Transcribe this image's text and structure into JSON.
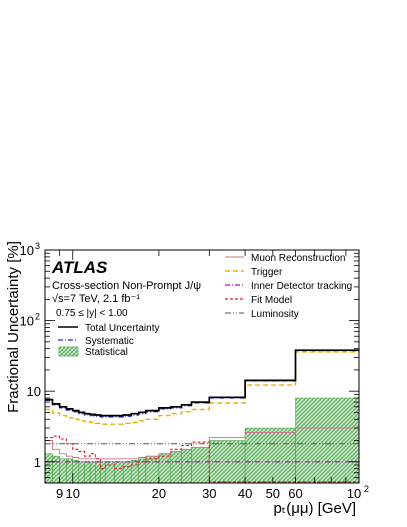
{
  "chart_data": {
    "type": "line",
    "experiment": "ATLAS",
    "annotation_lines": [
      "Cross-section Non-Prompt J/ψ",
      "√s=7 TeV, 2.1 fb⁻¹",
      "0.75 ≤ |y| < 1.00"
    ],
    "xlabel": "pₜ(μμ) [GeV]",
    "ylabel": "Fractional Uncertainty [%]",
    "xscale": "log",
    "yscale": "log",
    "xlim": [
      8,
      100
    ],
    "ylim": [
      0.5,
      1000
    ],
    "x_tick_labels": [
      {
        "x": 9,
        "label": "9"
      },
      {
        "x": 10,
        "label": "10"
      },
      {
        "x": 20,
        "label": "20"
      },
      {
        "x": 30,
        "label": "30"
      },
      {
        "x": 40,
        "label": "40"
      },
      {
        "x": 50,
        "label": "50"
      },
      {
        "x": 60,
        "label": "60"
      }
    ],
    "x_tick_label_100": {
      "base": "10",
      "exp": "2"
    },
    "y_tick_labels": [
      {
        "y": 1,
        "label": "1"
      },
      {
        "y": 10,
        "label": "10"
      },
      {
        "y": 100,
        "base": "10",
        "exp": "2"
      },
      {
        "y": 1000,
        "base": "10",
        "exp": "3"
      }
    ],
    "bin_edges": [
      8,
      8.5,
      9,
      9.5,
      10,
      10.5,
      11,
      11.5,
      12,
      12.5,
      13,
      14,
      15,
      16,
      17,
      18,
      20,
      22,
      24,
      26,
      30,
      40,
      60,
      100
    ],
    "legend_left": [
      {
        "name": "Total Uncertainty",
        "style": "solid-black"
      },
      {
        "name": "Systematic",
        "style": "dashdot-blue"
      },
      {
        "name": "Statistical",
        "style": "hatched-green"
      }
    ],
    "legend_right": [
      {
        "name": "Muon Reconstruction",
        "style": "solid-pink"
      },
      {
        "name": "Trigger",
        "style": "dashed-orange"
      },
      {
        "name": "Inner Detector tracking",
        "style": "dashdot-magenta"
      },
      {
        "name": "Fit Model",
        "style": "dashed-red"
      },
      {
        "name": "Luminosity",
        "style": "dashdot-gray"
      }
    ],
    "series": [
      {
        "name": "Total Uncertainty",
        "color": "#000000",
        "values": [
          7.6,
          6.6,
          6.0,
          5.6,
          5.3,
          5.0,
          4.8,
          4.7,
          4.6,
          4.5,
          4.5,
          4.5,
          4.6,
          4.8,
          5.0,
          5.3,
          5.8,
          6.0,
          6.4,
          7.0,
          8.2,
          14.2,
          38.0
        ]
      },
      {
        "name": "Systematic",
        "color": "#2d2dd0",
        "values": [
          7.4,
          6.4,
          5.8,
          5.4,
          5.1,
          4.8,
          4.6,
          4.5,
          4.4,
          4.3,
          4.3,
          4.3,
          4.4,
          4.6,
          4.8,
          5.1,
          5.6,
          5.8,
          6.2,
          6.8,
          8.0,
          14.0,
          37.5
        ]
      },
      {
        "name": "Statistical",
        "color": "#33a033",
        "values": [
          1.3,
          1.2,
          1.1,
          1.1,
          1.05,
          1.0,
          1.0,
          1.0,
          1.0,
          1.0,
          1.0,
          1.0,
          1.0,
          1.05,
          1.1,
          1.2,
          1.3,
          1.4,
          1.5,
          1.6,
          2.0,
          3.0,
          8.0
        ]
      },
      {
        "name": "Muon Reconstruction",
        "color": "#d07090",
        "values": [
          2.0,
          1.5,
          1.3,
          1.2,
          1.15,
          1.1,
          1.1,
          1.1,
          1.1,
          1.1,
          1.1,
          1.1,
          1.1,
          1.1,
          1.15,
          1.2,
          1.3,
          1.4,
          1.5,
          1.6,
          2.2,
          2.6,
          3.0
        ]
      },
      {
        "name": "Trigger",
        "color": "#f0b000",
        "values": [
          5.5,
          4.9,
          4.5,
          4.2,
          4.0,
          3.8,
          3.7,
          3.6,
          3.5,
          3.4,
          3.4,
          3.4,
          3.5,
          3.6,
          3.8,
          4.0,
          4.5,
          4.8,
          5.1,
          5.5,
          6.8,
          12.2,
          36.0
        ]
      },
      {
        "name": "Inner Detector tracking",
        "color": "#c000c0",
        "values": [
          1.0,
          1.0,
          1.0,
          1.0,
          1.0,
          1.0,
          1.0,
          1.0,
          1.0,
          1.0,
          1.0,
          1.0,
          1.0,
          1.0,
          1.0,
          1.0,
          1.0,
          1.0,
          1.0,
          1.0,
          1.0,
          1.0,
          1.0
        ]
      },
      {
        "name": "Fit Model",
        "color": "#e02020",
        "values": [
          2.2,
          2.3,
          2.1,
          1.8,
          1.5,
          1.4,
          1.2,
          1.3,
          1.1,
          0.8,
          0.9,
          0.8,
          0.85,
          0.9,
          1.0,
          1.1,
          1.2,
          1.5,
          1.7,
          1.9,
          0.52,
          0.52,
          0.52
        ]
      },
      {
        "name": "Luminosity",
        "color": "#555555",
        "values": [
          1.8,
          1.8,
          1.8,
          1.8,
          1.8,
          1.8,
          1.8,
          1.8,
          1.8,
          1.8,
          1.8,
          1.8,
          1.8,
          1.8,
          1.8,
          1.8,
          1.8,
          1.8,
          1.8,
          1.8,
          1.8,
          1.8,
          1.8
        ]
      }
    ]
  }
}
